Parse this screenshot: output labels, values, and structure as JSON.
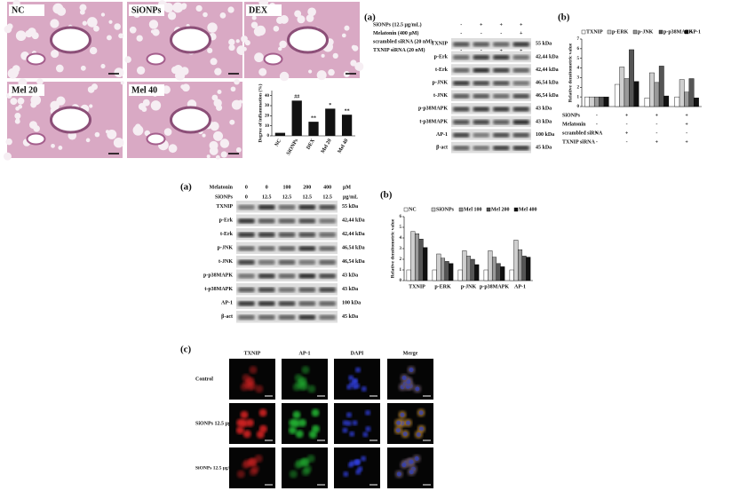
{
  "histology": {
    "panels": [
      "NC",
      "SiONPs",
      "DEX",
      "Mel 20",
      "Mel 40"
    ]
  },
  "chart_data": [
    {
      "type": "bar",
      "y_label": "Degree of inflammation (%)",
      "categories": [
        "NC",
        "SiONPs",
        "DEX",
        "Mel 20",
        "Mel 40"
      ],
      "values": [
        3,
        35,
        14,
        27,
        21
      ],
      "annotations": [
        null,
        "##",
        "**",
        "*",
        "**"
      ],
      "color": "#111111",
      "ylim": [
        0,
        45
      ],
      "yticks": [
        0,
        10,
        20,
        30,
        40
      ]
    },
    {
      "type": "bar",
      "panel_label": "(b)",
      "y_label": "Relative densitometric value",
      "categories": [
        null,
        null,
        null,
        null
      ],
      "series": [
        {
          "name": "TXNIP",
          "color": "#ffffff",
          "values": [
            1,
            2.3,
            0.9,
            1.0
          ]
        },
        {
          "name": "p-ERK",
          "color": "#cfcfcf",
          "values": [
            1,
            4.1,
            3.5,
            2.8
          ]
        },
        {
          "name": "p-JNK",
          "color": "#9a9a9a",
          "values": [
            1,
            2.9,
            2.5,
            1.5
          ]
        },
        {
          "name": "p-p38MAPK",
          "color": "#555555",
          "values": [
            1,
            5.9,
            4.2,
            2.9
          ]
        },
        {
          "name": "AP-1",
          "color": "#111111",
          "values": [
            1,
            2.6,
            1.1,
            0.9
          ]
        }
      ],
      "ylim": [
        0,
        7
      ],
      "yticks": [
        0,
        1,
        2,
        3,
        4,
        5,
        6,
        7
      ],
      "conditions": [
        {
          "name": "SiONPs",
          "signs": [
            "-",
            "+",
            "+",
            "+"
          ]
        },
        {
          "name": "Melatonin",
          "signs": [
            "-",
            "-",
            "-",
            "+"
          ]
        },
        {
          "name": "scrambled siRNA",
          "signs": [
            "+",
            "+",
            "-",
            "-"
          ]
        },
        {
          "name": "TXNIP siRNA",
          "signs": [
            "-",
            "-",
            "+",
            "+"
          ]
        }
      ]
    },
    {
      "type": "bar",
      "panel_label": "(b)",
      "y_label": "Relative densitometric value",
      "categories": [
        "TXNIP",
        "p-ERK",
        "p-JNK",
        "p-p38MAPK",
        "AP-1"
      ],
      "series": [
        {
          "name": "NC",
          "color": "#ffffff",
          "values": [
            1,
            1,
            1,
            1,
            1
          ]
        },
        {
          "name": "SiONPs",
          "color": "#cfcfcf",
          "values": [
            4.6,
            2.5,
            2.8,
            2.8,
            3.8
          ]
        },
        {
          "name": "Mel 100",
          "color": "#9a9a9a",
          "values": [
            4.4,
            2.1,
            2.3,
            2.2,
            2.9
          ]
        },
        {
          "name": "Mel 200",
          "color": "#555555",
          "values": [
            3.9,
            1.8,
            2.0,
            1.6,
            2.3
          ]
        },
        {
          "name": "Mel 400",
          "color": "#111111",
          "values": [
            3.1,
            1.6,
            1.5,
            1.3,
            2.2
          ]
        }
      ],
      "ylim": [
        0,
        6
      ],
      "yticks": [
        0,
        1,
        2,
        3,
        4,
        5,
        6
      ]
    }
  ],
  "blot_top": {
    "panel_label": "(a)",
    "conditions": [
      {
        "name": "SiONPs (12.5 μg/mL)",
        "values": [
          "-",
          "+",
          "+",
          "+"
        ]
      },
      {
        "name": "Melatonin (400 μM)",
        "values": [
          "-",
          "-",
          "-",
          "+"
        ]
      },
      {
        "name": "scrambled siRNA (20 nM)",
        "values": [
          "+",
          "+",
          "-",
          "-"
        ]
      },
      {
        "name": "TXNIP siRNA (20 nM)",
        "values": [
          "-",
          "-",
          "+",
          "+"
        ]
      }
    ],
    "rows": [
      {
        "name": "TXNIP",
        "kda": "55 kDa"
      },
      {
        "name": "p-Erk",
        "kda": "42,44 kDa"
      },
      {
        "name": "t-Erk",
        "kda": "42,44 kDa"
      },
      {
        "name": "p-JNK",
        "kda": "46,54 kDa"
      },
      {
        "name": "t-JNK",
        "kda": "46,54 kDa"
      },
      {
        "name": "p-p38MAPK",
        "kda": "43 kDa"
      },
      {
        "name": "t-p38MAPK",
        "kda": "43 kDa"
      },
      {
        "name": "AP-1",
        "kda": "100 kDa"
      },
      {
        "name": "β-act",
        "kda": "45 kDa"
      }
    ]
  },
  "blot_mid": {
    "panel_label": "(a)",
    "conditions": [
      {
        "name": "Melatonin",
        "values": [
          "0",
          "0",
          "100",
          "200",
          "400"
        ],
        "unit": "μM"
      },
      {
        "name": "SiONPs",
        "values": [
          "0",
          "12.5",
          "12.5",
          "12.5",
          "12.5"
        ],
        "unit": "μg/mL"
      }
    ],
    "rows": [
      {
        "name": "TXNIP",
        "kda": "55 kDa"
      },
      {
        "name": "p-Erk",
        "kda": "42,44 kDa"
      },
      {
        "name": "t-Erk",
        "kda": "42,44 kDa"
      },
      {
        "name": "p-JNK",
        "kda": "46,54 kDa"
      },
      {
        "name": "t-JNK",
        "kda": "46,54 kDa"
      },
      {
        "name": "p-p38MAPK",
        "kda": "43 kDa"
      },
      {
        "name": "t-p38MAPK",
        "kda": "43 kDa"
      },
      {
        "name": "AP-1",
        "kda": "100 kDa"
      },
      {
        "name": "β-act",
        "kda": "45 kDa"
      }
    ]
  },
  "fluorescence": {
    "panel_label": "(c)",
    "columns": [
      "TXNIP",
      "AP-1",
      "DAPI",
      "Merge"
    ],
    "rows": [
      "Control",
      "SiONPs 12.5 μg/kg",
      "SiONPs 12.5 μg/kg Melatonin 400 μM"
    ]
  }
}
